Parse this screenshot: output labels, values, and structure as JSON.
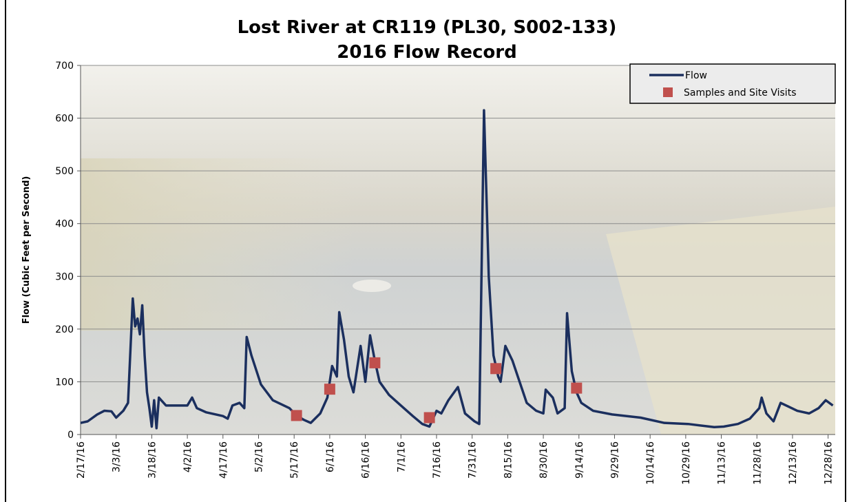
{
  "chart_data": {
    "type": "line",
    "title": "Lost River at CR119 (PL30, S002-133)",
    "subtitle": "2016 Flow Record",
    "y_label": "Flow (Cubic Feet per Second)",
    "ylim": [
      0,
      700
    ],
    "yticks": [
      0,
      100,
      200,
      300,
      400,
      500,
      600,
      700
    ],
    "xlim": [
      "2016-02-17",
      "2016-12-31"
    ],
    "xticks": [
      {
        "value": "2016-02-17",
        "label": "2/17/16"
      },
      {
        "value": "2016-03-03",
        "label": "3/3/16"
      },
      {
        "value": "2016-03-18",
        "label": "3/18/16"
      },
      {
        "value": "2016-04-02",
        "label": "4/2/16"
      },
      {
        "value": "2016-04-17",
        "label": "4/17/16"
      },
      {
        "value": "2016-05-02",
        "label": "5/2/16"
      },
      {
        "value": "2016-05-17",
        "label": "5/17/16"
      },
      {
        "value": "2016-06-01",
        "label": "6/1/16"
      },
      {
        "value": "2016-06-16",
        "label": "6/16/16"
      },
      {
        "value": "2016-07-01",
        "label": "7/1/16"
      },
      {
        "value": "2016-07-16",
        "label": "7/16/16"
      },
      {
        "value": "2016-07-31",
        "label": "7/31/16"
      },
      {
        "value": "2016-08-15",
        "label": "8/15/16"
      },
      {
        "value": "2016-08-30",
        "label": "8/30/16"
      },
      {
        "value": "2016-09-14",
        "label": "9/14/16"
      },
      {
        "value": "2016-09-29",
        "label": "9/29/16"
      },
      {
        "value": "2016-10-14",
        "label": "10/14/16"
      },
      {
        "value": "2016-10-29",
        "label": "10/29/16"
      },
      {
        "value": "2016-11-13",
        "label": "11/13/16"
      },
      {
        "value": "2016-11-28",
        "label": "11/28/16"
      },
      {
        "value": "2016-12-13",
        "label": "12/13/16"
      },
      {
        "value": "2016-12-28",
        "label": "12/28/16"
      }
    ],
    "grid": true,
    "legend": "top-right",
    "series": [
      {
        "name": "Flow",
        "type": "line",
        "color": "#1b2f5e",
        "x": [
          "2016-02-17",
          "2016-02-20",
          "2016-02-24",
          "2016-02-27",
          "2016-03-01",
          "2016-03-03",
          "2016-03-06",
          "2016-03-08",
          "2016-03-10",
          "2016-03-11",
          "2016-03-12",
          "2016-03-13",
          "2016-03-14",
          "2016-03-15",
          "2016-03-16",
          "2016-03-17",
          "2016-03-18",
          "2016-03-19",
          "2016-03-20",
          "2016-03-21",
          "2016-03-24",
          "2016-04-02",
          "2016-04-04",
          "2016-04-06",
          "2016-04-10",
          "2016-04-17",
          "2016-04-19",
          "2016-04-21",
          "2016-04-24",
          "2016-04-26",
          "2016-04-27",
          "2016-04-29",
          "2016-05-03",
          "2016-05-08",
          "2016-05-15",
          "2016-05-18",
          "2016-05-21",
          "2016-05-24",
          "2016-05-28",
          "2016-05-31",
          "2016-06-02",
          "2016-06-04",
          "2016-06-05",
          "2016-06-07",
          "2016-06-09",
          "2016-06-11",
          "2016-06-14",
          "2016-06-16",
          "2016-06-18",
          "2016-06-20",
          "2016-06-22",
          "2016-06-26",
          "2016-07-01",
          "2016-07-06",
          "2016-07-10",
          "2016-07-13",
          "2016-07-16",
          "2016-07-18",
          "2016-07-21",
          "2016-07-25",
          "2016-07-28",
          "2016-08-01",
          "2016-08-03",
          "2016-08-05",
          "2016-08-07",
          "2016-08-09",
          "2016-08-11",
          "2016-08-12",
          "2016-08-14",
          "2016-08-17",
          "2016-08-20",
          "2016-08-23",
          "2016-08-27",
          "2016-08-30",
          "2016-08-31",
          "2016-09-03",
          "2016-09-05",
          "2016-09-08",
          "2016-09-09",
          "2016-09-11",
          "2016-09-13",
          "2016-09-15",
          "2016-09-20",
          "2016-09-28",
          "2016-10-10",
          "2016-10-20",
          "2016-10-30",
          "2016-11-10",
          "2016-11-14",
          "2016-11-20",
          "2016-11-25",
          "2016-11-29",
          "2016-11-30",
          "2016-12-02",
          "2016-12-05",
          "2016-12-08",
          "2016-12-15",
          "2016-12-20",
          "2016-12-24",
          "2016-12-27",
          "2016-12-30"
        ],
        "values": [
          22,
          25,
          38,
          45,
          44,
          32,
          45,
          60,
          258,
          205,
          220,
          190,
          245,
          150,
          80,
          50,
          15,
          65,
          12,
          70,
          55,
          55,
          70,
          50,
          42,
          35,
          30,
          55,
          60,
          50,
          185,
          150,
          95,
          65,
          50,
          36,
          28,
          22,
          40,
          70,
          130,
          110,
          232,
          180,
          110,
          80,
          168,
          100,
          188,
          140,
          100,
          75,
          55,
          35,
          20,
          15,
          45,
          40,
          65,
          90,
          40,
          25,
          20,
          615,
          300,
          150,
          110,
          100,
          168,
          140,
          100,
          60,
          45,
          40,
          85,
          70,
          40,
          50,
          230,
          120,
          80,
          60,
          45,
          38,
          32,
          22,
          20,
          14,
          15,
          20,
          30,
          50,
          70,
          40,
          25,
          60,
          45,
          40,
          50,
          65,
          55
        ]
      },
      {
        "name": "Samples and Site Visits",
        "type": "scatter",
        "color": "#c0504d",
        "x": [
          "2016-05-18",
          "2016-06-01",
          "2016-06-20",
          "2016-07-13",
          "2016-08-10",
          "2016-09-13"
        ],
        "values": [
          36,
          86,
          136,
          32,
          125,
          88
        ]
      }
    ]
  }
}
